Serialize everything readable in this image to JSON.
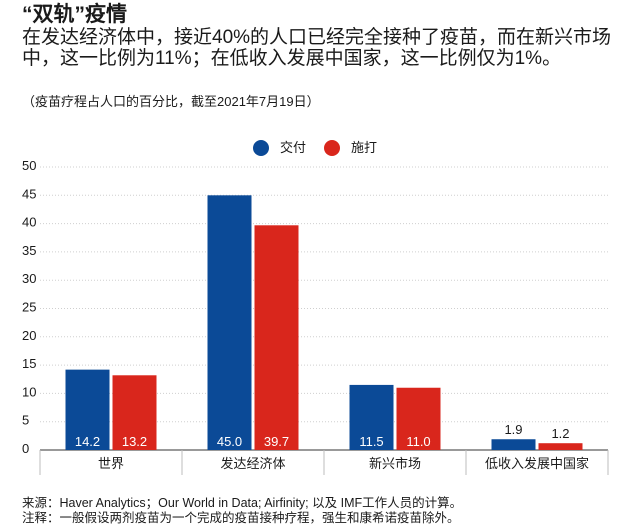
{
  "header": {
    "title": "“双轨”疫情",
    "subtitle": "在发达经济体中，接近40%的人口已经完全接种了疫苗，而在新兴市场中，这一比例为11%；在低收入发展中国家，这一比例仅为1%。",
    "note": "（疫苗疗程占人口的百分比，截至2021年7月19日）"
  },
  "legend": [
    {
      "label": "交付",
      "color": "#0b4a97"
    },
    {
      "label": "施打",
      "color": "#d9261c"
    }
  ],
  "chart_data": {
    "type": "bar",
    "categories": [
      "世界",
      "发达经济体",
      "新兴市场",
      "低收入发展中国家"
    ],
    "series": [
      {
        "name": "交付",
        "color": "#0b4a97",
        "values": [
          14.2,
          45.0,
          11.5,
          1.9
        ]
      },
      {
        "name": "施打",
        "color": "#d9261c",
        "values": [
          13.2,
          39.7,
          11.0,
          1.2
        ]
      }
    ],
    "value_labels": [
      [
        "14.2",
        "45.0",
        "11.5",
        "1.9"
      ],
      [
        "13.2",
        "39.7",
        "11.0",
        "1.2"
      ]
    ],
    "yticks": [
      0,
      5,
      10,
      15,
      20,
      25,
      30,
      35,
      40,
      45,
      50
    ],
    "ylim": [
      0,
      50
    ],
    "grid": true,
    "legend_position": "top-center"
  },
  "footer": {
    "source": "来源：Haver Analytics；Our World in Data; Airfinity; 以及 IMF工作人员的计算。",
    "notes": "注释：一般假设两剂疫苗为一个完成的疫苗接种疗程，强生和康希诺疫苗除外。"
  }
}
